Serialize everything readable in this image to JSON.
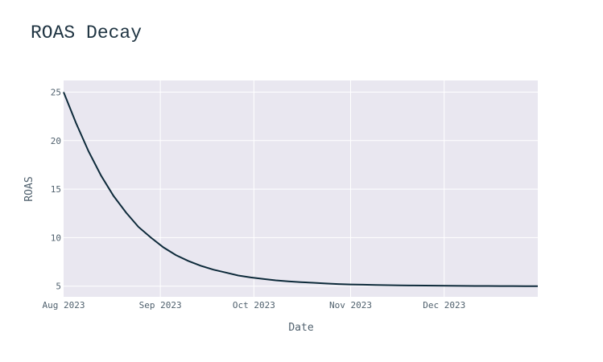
{
  "chart_data": {
    "type": "line",
    "title": "ROAS Decay",
    "xlabel": "Date",
    "ylabel": "ROAS",
    "x_tick_labels": [
      "Aug 2023",
      "Sep 2023",
      "Oct 2023",
      "Nov 2023",
      "Dec 2023"
    ],
    "x_tick_dates": [
      "2023-08-01",
      "2023-09-01",
      "2023-10-01",
      "2023-11-01",
      "2023-12-01"
    ],
    "y_ticks": [
      5,
      10,
      15,
      20,
      25
    ],
    "xlim": [
      "2023-08-01",
      "2023-12-31"
    ],
    "ylim": [
      3.9,
      26.2
    ],
    "grid": true,
    "colors": {
      "line": "#0d2a3a",
      "plot_bg": "#e9e7f0",
      "grid": "#ffffff",
      "text": "#50616e"
    },
    "series": [
      {
        "x": [
          "2023-08-01",
          "2023-08-05",
          "2023-08-09",
          "2023-08-13",
          "2023-08-17",
          "2023-08-21",
          "2023-08-25",
          "2023-08-29",
          "2023-09-02",
          "2023-09-06",
          "2023-09-10",
          "2023-09-14",
          "2023-09-18",
          "2023-09-22",
          "2023-09-26",
          "2023-09-30",
          "2023-10-04",
          "2023-10-08",
          "2023-10-12",
          "2023-10-16",
          "2023-10-20",
          "2023-10-24",
          "2023-10-28",
          "2023-11-01",
          "2023-11-05",
          "2023-11-09",
          "2023-11-13",
          "2023-11-17",
          "2023-11-21",
          "2023-11-25",
          "2023-11-29",
          "2023-12-03",
          "2023-12-07",
          "2023-12-11",
          "2023-12-15",
          "2023-12-19",
          "2023-12-23",
          "2023-12-27",
          "2023-12-31"
        ],
        "y": [
          25.0,
          21.8,
          18.9,
          16.4,
          14.3,
          12.6,
          11.1,
          10.0,
          9.0,
          8.2,
          7.6,
          7.1,
          6.7,
          6.4,
          6.1,
          5.9,
          5.75,
          5.6,
          5.5,
          5.42,
          5.35,
          5.28,
          5.22,
          5.18,
          5.15,
          5.12,
          5.1,
          5.08,
          5.07,
          5.06,
          5.05,
          5.04,
          5.03,
          5.02,
          5.02,
          5.01,
          5.01,
          5.0,
          5.0
        ]
      }
    ]
  }
}
